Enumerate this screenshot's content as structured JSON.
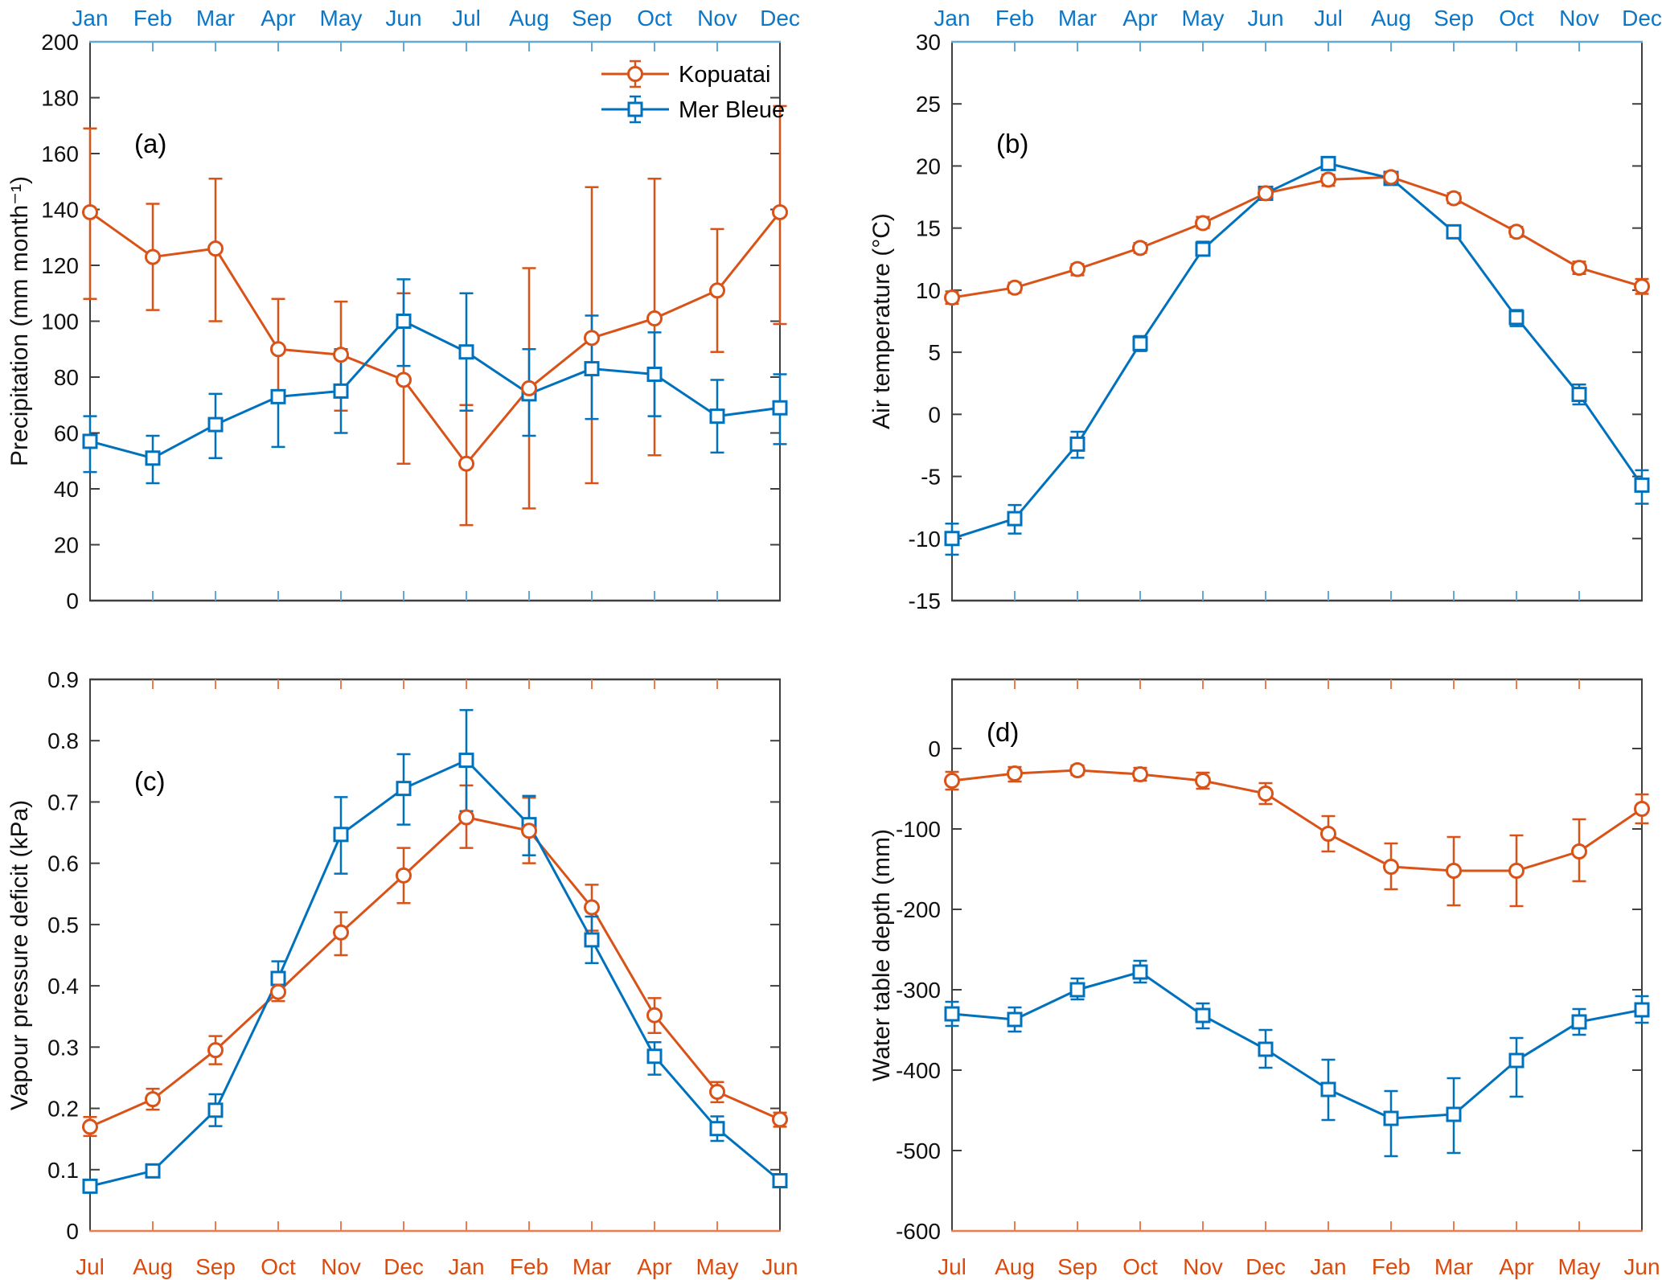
{
  "figure": {
    "months_top": [
      "Jan",
      "Feb",
      "Mar",
      "Apr",
      "May",
      "Jun",
      "Jul",
      "Aug",
      "Sep",
      "Oct",
      "Nov",
      "Dec"
    ],
    "months_bottom": [
      "Jul",
      "Aug",
      "Sep",
      "Oct",
      "Nov",
      "Dec",
      "Jan",
      "Feb",
      "Mar",
      "Apr",
      "May",
      "Jun"
    ],
    "legend": {
      "items": [
        {
          "label": "Kopuatai",
          "marker": "circle",
          "color": "#D95319"
        },
        {
          "label": "Mer Bleue",
          "marker": "square",
          "color": "#0072BD"
        }
      ]
    },
    "colors": {
      "kopuatai": "#D95319",
      "mer_bleue": "#0072BD",
      "top_axis_line": "#64A8D6",
      "top_axis_labels": "#0B77C9",
      "bottom_axis_line": "#EC7C4D",
      "bottom_axis_labels": "#DC4B0E",
      "frame": "#3F3F3F",
      "text": "#111111"
    }
  },
  "chart_data": [
    {
      "id": "a",
      "type": "line",
      "panel_label": "(a)",
      "ylabel": "Precipitation (mm month⁻¹)",
      "ylim": [
        0,
        200
      ],
      "yticks": [
        0,
        20,
        40,
        60,
        80,
        100,
        120,
        140,
        160,
        180,
        200
      ],
      "ytick_labels": [
        "0",
        "20",
        "40",
        "60",
        "80",
        "100",
        "120",
        "140",
        "160",
        "180",
        "200"
      ],
      "categories_bottom": [
        "Jul",
        "Aug",
        "Sep",
        "Oct",
        "Nov",
        "Dec",
        "Jan",
        "Feb",
        "Mar",
        "Apr",
        "May",
        "Jun"
      ],
      "categories_top": [
        "Jan",
        "Feb",
        "Mar",
        "Apr",
        "May",
        "Jun",
        "Jul",
        "Aug",
        "Sep",
        "Oct",
        "Nov",
        "Dec"
      ],
      "show_legend": true,
      "series": [
        {
          "name": "Kopuatai",
          "color": "#D95319",
          "marker": "circle",
          "values": [
            139,
            123,
            126,
            90,
            88,
            79,
            49,
            76,
            94,
            101,
            111,
            139
          ],
          "err_lo": [
            108,
            104,
            100,
            73,
            68,
            49,
            27,
            33,
            42,
            52,
            89,
            99
          ],
          "err_hi": [
            169,
            142,
            151,
            108,
            107,
            110,
            70,
            119,
            148,
            151,
            133,
            177
          ]
        },
        {
          "name": "Mer Bleue",
          "color": "#0072BD",
          "marker": "square",
          "values": [
            57,
            51,
            63,
            73,
            75,
            100,
            89,
            74,
            83,
            81,
            66,
            69
          ],
          "err_lo": [
            46,
            42,
            51,
            55,
            60,
            84,
            68,
            59,
            65,
            66,
            53,
            56
          ],
          "err_hi": [
            66,
            59,
            74,
            75,
            90,
            115,
            110,
            90,
            102,
            96,
            79,
            81
          ]
        }
      ]
    },
    {
      "id": "b",
      "type": "line",
      "panel_label": "(b)",
      "ylabel": "Air temperature (°C)",
      "ylim": [
        -15,
        30
      ],
      "yticks": [
        -15,
        -10,
        -5,
        0,
        5,
        10,
        15,
        20,
        25,
        30
      ],
      "ytick_labels": [
        "-15",
        "-10",
        "-5",
        "0",
        "5",
        "10",
        "15",
        "20",
        "25",
        "30"
      ],
      "categories_bottom": [
        "Jul",
        "Aug",
        "Sep",
        "Oct",
        "Nov",
        "Dec",
        "Jan",
        "Feb",
        "Mar",
        "Apr",
        "May",
        "Jun"
      ],
      "categories_top": [
        "Jan",
        "Feb",
        "Mar",
        "Apr",
        "May",
        "Jun",
        "Jul",
        "Aug",
        "Sep",
        "Oct",
        "Nov",
        "Dec"
      ],
      "show_legend": false,
      "series": [
        {
          "name": "Kopuatai",
          "color": "#D95319",
          "marker": "circle",
          "values": [
            9.4,
            10.2,
            11.7,
            13.4,
            15.4,
            17.8,
            18.9,
            19.1,
            17.4,
            14.7,
            11.8,
            10.3
          ],
          "err_lo": [
            8.9,
            9.8,
            11.2,
            13.0,
            15.0,
            17.4,
            18.4,
            18.7,
            17.0,
            14.3,
            11.3,
            9.7
          ],
          "err_hi": [
            9.9,
            10.6,
            12.1,
            13.8,
            15.9,
            18.2,
            19.3,
            19.5,
            17.8,
            15.1,
            12.3,
            10.9
          ]
        },
        {
          "name": "Mer Bleue",
          "color": "#0072BD",
          "marker": "square",
          "values": [
            -10.0,
            -8.4,
            -2.4,
            5.7,
            13.3,
            17.8,
            20.2,
            19.0,
            14.7,
            7.8,
            1.6,
            -5.7
          ],
          "err_lo": [
            -11.3,
            -9.6,
            -3.5,
            5.1,
            12.8,
            17.4,
            19.7,
            18.6,
            14.3,
            7.1,
            0.8,
            -7.2
          ],
          "err_hi": [
            -8.8,
            -7.3,
            -1.4,
            6.3,
            13.9,
            18.2,
            20.7,
            19.4,
            15.1,
            8.4,
            2.4,
            -4.5
          ]
        }
      ]
    },
    {
      "id": "c",
      "type": "line",
      "panel_label": "(c)",
      "ylabel": "Vapour pressure deficit (kPa)",
      "ylim": [
        0,
        0.9
      ],
      "yticks": [
        0,
        0.1,
        0.2,
        0.3,
        0.4,
        0.5,
        0.6,
        0.7,
        0.8,
        0.9
      ],
      "ytick_labels": [
        "0",
        "0.1",
        "0.2",
        "0.3",
        "0.4",
        "0.5",
        "0.6",
        "0.7",
        "0.8",
        "0.9"
      ],
      "categories_bottom": [
        "Jul",
        "Aug",
        "Sep",
        "Oct",
        "Nov",
        "Dec",
        "Jan",
        "Feb",
        "Mar",
        "Apr",
        "May",
        "Jun"
      ],
      "categories_top": [
        "Jan",
        "Feb",
        "Mar",
        "Apr",
        "May",
        "Jun",
        "Jul",
        "Aug",
        "Sep",
        "Oct",
        "Nov",
        "Dec"
      ],
      "show_legend": false,
      "series": [
        {
          "name": "Kopuatai",
          "color": "#D95319",
          "marker": "circle",
          "values": [
            0.17,
            0.215,
            0.295,
            0.39,
            0.487,
            0.58,
            0.675,
            0.653,
            0.528,
            0.352,
            0.227,
            0.182
          ],
          "err_lo": [
            0.155,
            0.198,
            0.272,
            0.375,
            0.45,
            0.535,
            0.625,
            0.6,
            0.49,
            0.323,
            0.21,
            0.17
          ],
          "err_hi": [
            0.186,
            0.232,
            0.318,
            0.405,
            0.52,
            0.625,
            0.727,
            0.707,
            0.565,
            0.38,
            0.243,
            0.193
          ]
        },
        {
          "name": "Mer Bleue",
          "color": "#0072BD",
          "marker": "square",
          "values": [
            0.073,
            0.098,
            0.197,
            0.412,
            0.647,
            0.722,
            0.768,
            0.663,
            0.475,
            0.285,
            0.167,
            0.082
          ],
          "err_lo": [
            0.067,
            0.089,
            0.171,
            0.388,
            0.583,
            0.663,
            0.685,
            0.613,
            0.437,
            0.255,
            0.147,
            0.072
          ],
          "err_hi": [
            0.079,
            0.107,
            0.223,
            0.44,
            0.708,
            0.778,
            0.85,
            0.71,
            0.513,
            0.308,
            0.187,
            0.092
          ]
        }
      ]
    },
    {
      "id": "d",
      "type": "line",
      "panel_label": "(d)",
      "ylabel": "Water table depth (mm)",
      "ylim": [
        -600,
        86
      ],
      "yticks": [
        0,
        -100,
        -200,
        -300,
        -400,
        -500,
        -600
      ],
      "ytick_labels": [
        "0",
        "-100",
        "-200",
        "-300",
        "-400",
        "-500",
        "-600"
      ],
      "categories_bottom": [
        "Jul",
        "Aug",
        "Sep",
        "Oct",
        "Nov",
        "Dec",
        "Jan",
        "Feb",
        "Mar",
        "Apr",
        "May",
        "Jun"
      ],
      "categories_top": [
        "Jan",
        "Feb",
        "Mar",
        "Apr",
        "May",
        "Jun",
        "Jul",
        "Aug",
        "Sep",
        "Oct",
        "Nov",
        "Dec"
      ],
      "show_legend": false,
      "series": [
        {
          "name": "Kopuatai",
          "color": "#D95319",
          "marker": "circle",
          "values": [
            -40,
            -31,
            -27,
            -32,
            -40,
            -56,
            -106,
            -147,
            -152,
            -152,
            -128,
            -75
          ],
          "err_lo": [
            -51,
            -41,
            -33,
            -40,
            -50,
            -69,
            -128,
            -175,
            -195,
            -196,
            -165,
            -93
          ],
          "err_hi": [
            -29,
            -23,
            -21,
            -24,
            -30,
            -43,
            -84,
            -118,
            -110,
            -108,
            -88,
            -57
          ]
        },
        {
          "name": "Mer Bleue",
          "color": "#0072BD",
          "marker": "square",
          "values": [
            -330,
            -337,
            -300,
            -278,
            -332,
            -374,
            -424,
            -460,
            -455,
            -388,
            -340,
            -325
          ],
          "err_lo": [
            -345,
            -352,
            -312,
            -291,
            -348,
            -397,
            -462,
            -507,
            -503,
            -433,
            -356,
            -341
          ],
          "err_hi": [
            -315,
            -322,
            -286,
            -264,
            -317,
            -350,
            -387,
            -426,
            -410,
            -360,
            -324,
            -308
          ]
        }
      ]
    }
  ]
}
